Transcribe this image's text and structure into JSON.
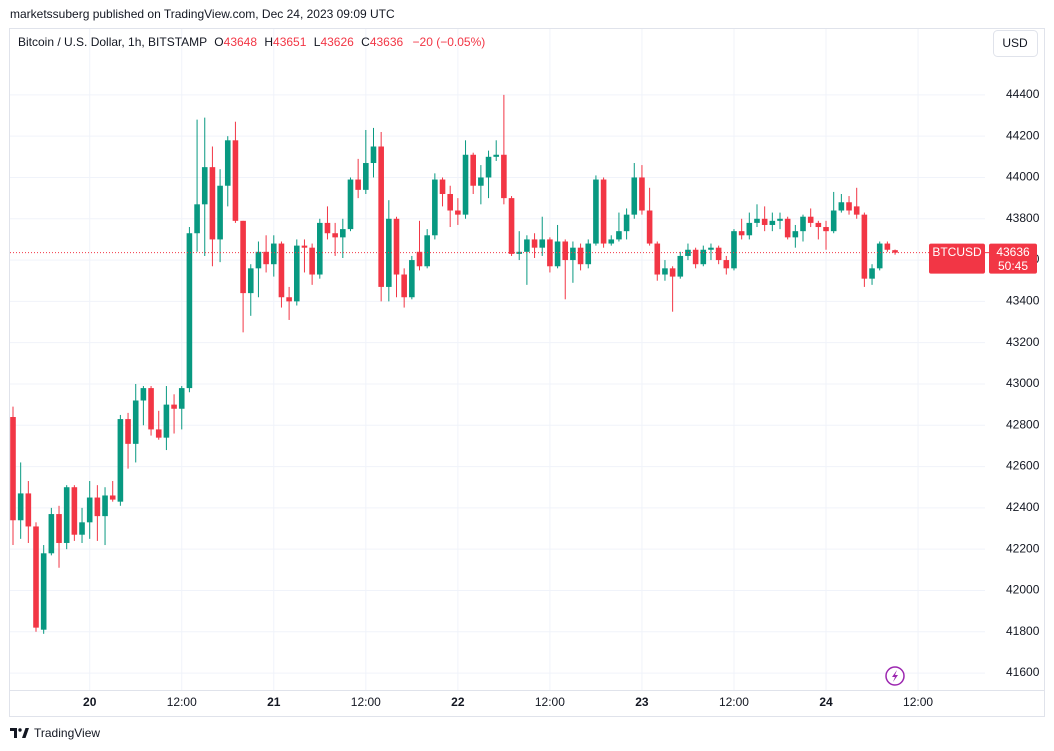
{
  "header": {
    "published": "marketssuberg published on TradingView.com, Dec 24, 2023 09:09 UTC"
  },
  "footer": {
    "brand": "TradingView"
  },
  "chart_data": {
    "type": "candlestick",
    "title": "Bitcoin / U.S. Dollar, 1h, BITSTAMP",
    "ohlc_letters": [
      "O",
      "H",
      "L",
      "C"
    ],
    "change": "−20 (−0.05%)",
    "currency": "USD",
    "symbol": "BTCUSD",
    "countdown": "50:45",
    "up_color": "#089981",
    "down_color": "#f23645",
    "grid": true,
    "ylim": [
      41518,
      44719
    ],
    "yticks": [
      41600,
      41800,
      42000,
      42200,
      42400,
      42600,
      42800,
      43000,
      43200,
      43400,
      43600,
      43800,
      44000,
      44200,
      44400
    ],
    "categories": [
      null,
      null,
      null,
      null,
      null,
      null,
      null,
      null,
      null,
      null,
      "20",
      null,
      null,
      null,
      null,
      null,
      null,
      null,
      null,
      null,
      null,
      null,
      "12:00",
      null,
      null,
      null,
      null,
      null,
      null,
      null,
      null,
      null,
      null,
      null,
      "21",
      null,
      null,
      null,
      null,
      null,
      null,
      null,
      null,
      null,
      null,
      null,
      "12:00",
      null,
      null,
      null,
      null,
      null,
      null,
      null,
      null,
      null,
      null,
      null,
      "22",
      null,
      null,
      null,
      null,
      null,
      null,
      null,
      null,
      null,
      null,
      null,
      "12:00",
      null,
      null,
      null,
      null,
      null,
      null,
      null,
      null,
      null,
      null,
      null,
      "23",
      null,
      null,
      null,
      null,
      null,
      null,
      null,
      null,
      null,
      null,
      null,
      "12:00",
      null,
      null,
      null,
      null,
      null,
      null,
      null,
      null,
      null,
      null,
      null,
      "24",
      null,
      null,
      null,
      null,
      null,
      null,
      null,
      null,
      null,
      null,
      null,
      "12:00"
    ],
    "open": [
      42840,
      42340,
      42470,
      42310,
      41810,
      42180,
      42370,
      42230,
      42500,
      42270,
      42330,
      42450,
      42360,
      42460,
      42430,
      42830,
      42710,
      42920,
      42980,
      42780,
      42740,
      42900,
      42880,
      42980,
      43730,
      43870,
      44050,
      43700,
      43960,
      44180,
      43790,
      43440,
      43560,
      43640,
      43580,
      43680,
      43420,
      43400,
      43670,
      43660,
      43530,
      43780,
      43730,
      43710,
      43750,
      43990,
      43940,
      44070,
      44150,
      43470,
      43800,
      43530,
      43420,
      43640,
      43570,
      43720,
      43990,
      43920,
      43840,
      43820,
      44110,
      43960,
      44000,
      44100,
      44110,
      43900,
      43630,
      43640,
      43700,
      43660,
      43700,
      43570,
      43690,
      43600,
      43660,
      43580,
      43680,
      43990,
      43680,
      43700,
      43740,
      43820,
      44000,
      43840,
      43680,
      43530,
      43560,
      43520,
      43620,
      43650,
      43580,
      43650,
      43660,
      43600,
      43560,
      43740,
      43720,
      43780,
      43800,
      43770,
      43790,
      43800,
      43710,
      43740,
      43810,
      43780,
      43760,
      43740,
      43840,
      43880,
      43860,
      43820,
      43510,
      43560,
      43680,
      43648,
      null,
      null,
      null
    ],
    "high": [
      42890,
      42620,
      42530,
      42330,
      42220,
      42400,
      42410,
      42510,
      42510,
      42400,
      42530,
      42510,
      42500,
      42530,
      42850,
      42860,
      43000,
      42990,
      42990,
      42870,
      42990,
      42950,
      42990,
      43760,
      44280,
      44290,
      44150,
      44040,
      44200,
      44270,
      43790,
      43580,
      43690,
      43720,
      43720,
      43690,
      43470,
      43700,
      43700,
      43680,
      43800,
      43860,
      43780,
      43800,
      44000,
      44090,
      44230,
      44240,
      44220,
      43890,
      43810,
      43560,
      43620,
      43790,
      43750,
      44020,
      44000,
      43960,
      43900,
      44180,
      44120,
      44060,
      44130,
      44180,
      44400,
      43910,
      43740,
      43720,
      43730,
      43810,
      43710,
      43770,
      43700,
      43690,
      43680,
      43700,
      44010,
      44000,
      43720,
      43830,
      43850,
      44070,
      44060,
      43950,
      43690,
      43600,
      43570,
      43640,
      43680,
      43660,
      43670,
      43680,
      43670,
      43620,
      43750,
      43800,
      43830,
      43870,
      43860,
      43830,
      43830,
      43810,
      43770,
      43820,
      43850,
      43790,
      43790,
      43930,
      43920,
      43910,
      43950,
      43830,
      43580,
      43690,
      43690,
      43651,
      null,
      null,
      null
    ],
    "low": [
      42220,
      42250,
      42230,
      41800,
      41790,
      42170,
      42110,
      42200,
      42240,
      42230,
      42250,
      42240,
      42220,
      42430,
      42410,
      42590,
      42620,
      42800,
      42750,
      42730,
      42680,
      42760,
      42780,
      42960,
      43640,
      43620,
      43570,
      43590,
      43860,
      43780,
      43250,
      43330,
      43420,
      43540,
      43520,
      43370,
      43310,
      43380,
      43540,
      43480,
      43510,
      43700,
      43620,
      43610,
      43740,
      43900,
      43920,
      44000,
      43400,
      43400,
      43420,
      43370,
      43410,
      43550,
      43560,
      43700,
      43860,
      43760,
      43770,
      43800,
      43920,
      43870,
      43900,
      44080,
      43870,
      43620,
      43600,
      43480,
      43610,
      43620,
      43540,
      43560,
      43410,
      43490,
      43550,
      43560,
      43670,
      43660,
      43670,
      43690,
      43700,
      43800,
      43820,
      43670,
      43500,
      43500,
      43350,
      43510,
      43600,
      43560,
      43570,
      43600,
      43580,
      43530,
      43550,
      43700,
      43700,
      43760,
      43740,
      43740,
      43750,
      43700,
      43660,
      43690,
      43760,
      43700,
      43650,
      43730,
      43830,
      43820,
      43800,
      43470,
      43480,
      43550,
      43640,
      43626,
      null,
      null,
      null
    ],
    "close": [
      42340,
      42470,
      42310,
      41820,
      42180,
      42370,
      42230,
      42500,
      42270,
      42330,
      42450,
      42360,
      42460,
      42440,
      42830,
      42710,
      42920,
      42980,
      42780,
      42740,
      42900,
      42880,
      42980,
      43730,
      43870,
      44050,
      43700,
      43960,
      44180,
      43790,
      43440,
      43560,
      43640,
      43580,
      43680,
      43420,
      43400,
      43670,
      43660,
      43530,
      43780,
      43730,
      43710,
      43750,
      43990,
      43940,
      44070,
      44150,
      43470,
      43800,
      43530,
      43420,
      43600,
      43570,
      43720,
      43990,
      43920,
      43840,
      43820,
      44110,
      43960,
      44000,
      44100,
      44110,
      43900,
      43630,
      43640,
      43700,
      43660,
      43700,
      43570,
      43690,
      43600,
      43660,
      43580,
      43680,
      43990,
      43680,
      43700,
      43740,
      43820,
      44000,
      43840,
      43680,
      43530,
      43560,
      43520,
      43620,
      43650,
      43580,
      43650,
      43660,
      43600,
      43560,
      43740,
      43720,
      43780,
      43800,
      43770,
      43790,
      43800,
      43710,
      43740,
      43810,
      43780,
      43760,
      43740,
      43840,
      43880,
      43840,
      43820,
      43510,
      43560,
      43680,
      43650,
      43636,
      null,
      null,
      null
    ]
  }
}
